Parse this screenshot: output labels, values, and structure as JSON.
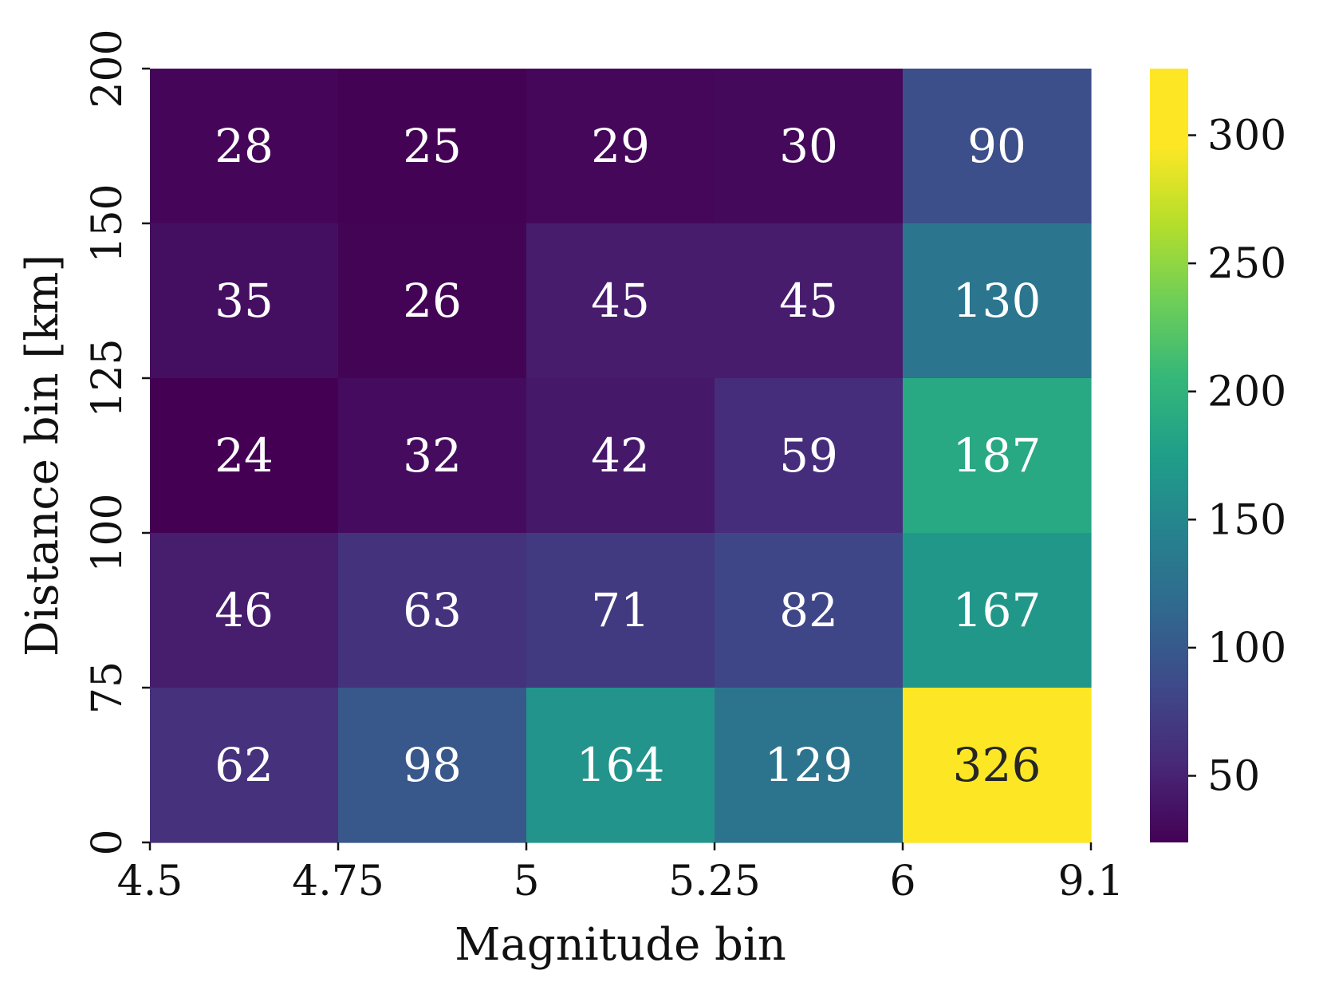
{
  "chart_data": {
    "type": "heatmap",
    "title": "",
    "xlabel": "Magnitude bin",
    "ylabel": "Distance bin [km]",
    "x_edges": [
      "4.5",
      "4.75",
      "5",
      "5.25",
      "6",
      "9.1"
    ],
    "y_edges": [
      "0",
      "75",
      "100",
      "125",
      "150",
      "200"
    ],
    "rows_top_to_bottom": [
      [
        28,
        25,
        29,
        30,
        90
      ],
      [
        35,
        26,
        45,
        45,
        130
      ],
      [
        24,
        32,
        42,
        59,
        187
      ],
      [
        46,
        63,
        71,
        82,
        167
      ],
      [
        62,
        98,
        164,
        129,
        326
      ]
    ],
    "colormap": "viridis",
    "colorbar": {
      "min": 24,
      "max": 326,
      "ticks": [
        "50",
        "100",
        "150",
        "200",
        "250",
        "300"
      ]
    },
    "annotation_colors": {
      "light": "#ffffff",
      "dark": "#262626"
    },
    "grid": false
  }
}
